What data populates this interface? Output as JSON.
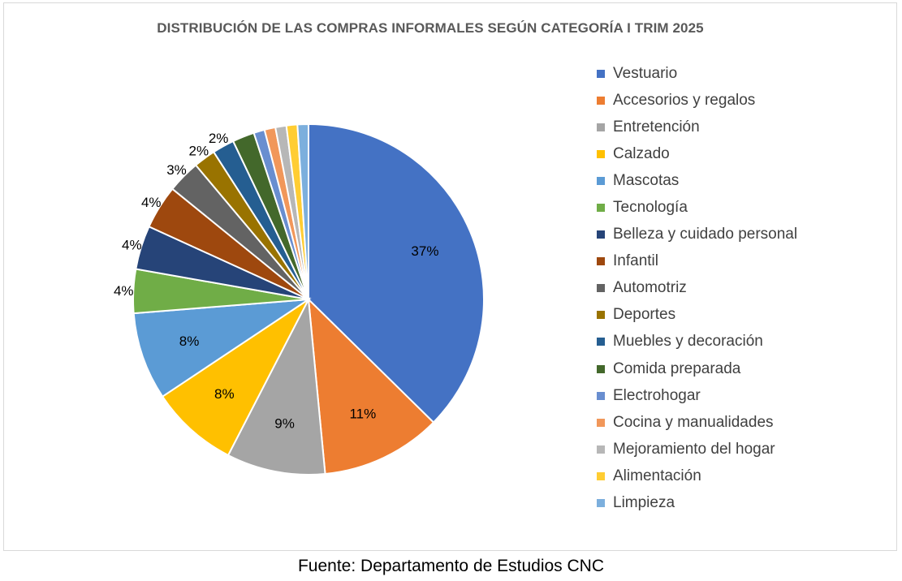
{
  "chart_data": {
    "type": "pie",
    "title": "DISTRIBUCIÓN DE LAS COMPRAS INFORMALES SEGÚN CATEGORÍA I TRIM 2025",
    "legend_position": "right",
    "slices": [
      {
        "label": "Vestuario",
        "value": 37,
        "display": "37%",
        "color": "#4472C4"
      },
      {
        "label": "Accesorios y regalos",
        "value": 11,
        "display": "11%",
        "color": "#ED7D31"
      },
      {
        "label": "Entretención",
        "value": 9,
        "display": "9%",
        "color": "#A5A5A5"
      },
      {
        "label": "Calzado",
        "value": 8,
        "display": "8%",
        "color": "#FFC000"
      },
      {
        "label": "Mascotas",
        "value": 8,
        "display": "8%",
        "color": "#5B9BD5"
      },
      {
        "label": "Tecnología",
        "value": 4,
        "display": "4%",
        "color": "#70AD47"
      },
      {
        "label": "Belleza y cuidado personal",
        "value": 4,
        "display": "4%",
        "color": "#264478"
      },
      {
        "label": "Infantil",
        "value": 4,
        "display": "4%",
        "color": "#9E480E"
      },
      {
        "label": "Automotriz",
        "value": 3,
        "display": "3%",
        "color": "#636363"
      },
      {
        "label": "Deportes",
        "value": 2,
        "display": "2%",
        "color": "#997300"
      },
      {
        "label": "Muebles y decoración",
        "value": 2,
        "display": "2%",
        "color": "#255E91"
      },
      {
        "label": "Comida preparada",
        "value": 2,
        "display": "",
        "color": "#43682B"
      },
      {
        "label": "Electrohogar",
        "value": 1,
        "display": "",
        "color": "#698ED0"
      },
      {
        "label": "Cocina y manualidades",
        "value": 1,
        "display": "",
        "color": "#F1975A"
      },
      {
        "label": "Mejoramiento del hogar",
        "value": 1,
        "display": "",
        "color": "#B7B7B7"
      },
      {
        "label": "Alimentación",
        "value": 1,
        "display": "",
        "color": "#FFCD33"
      },
      {
        "label": "Limpieza",
        "value": 1,
        "display": "",
        "color": "#7CAFDD"
      }
    ]
  },
  "source": "Fuente: Departamento de Estudios CNC"
}
